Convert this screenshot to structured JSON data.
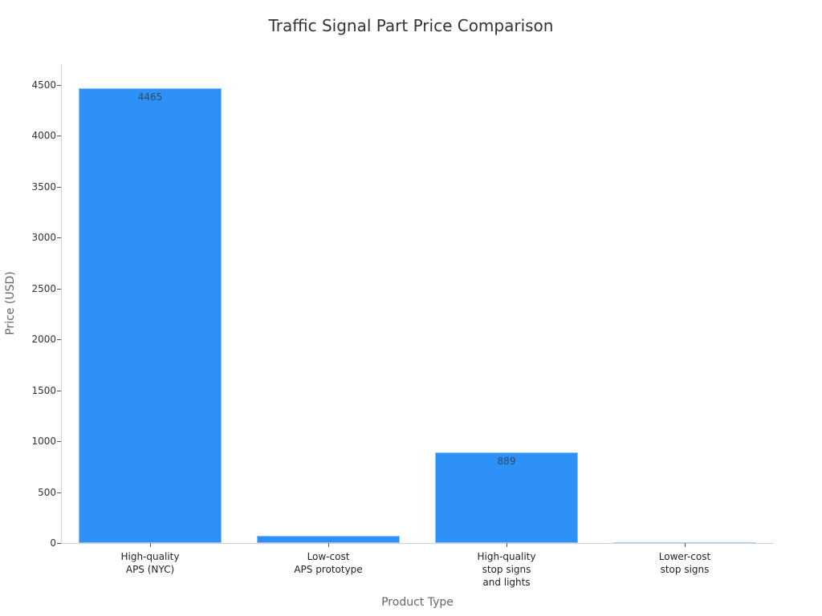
{
  "chart_data": {
    "type": "bar",
    "title": "Traffic Signal Part Price Comparison",
    "xlabel": "Product Type",
    "ylabel": "Price (USD)",
    "categories": [
      "High-quality\nAPS (NYC)",
      "Low-cost\nAPS prototype",
      "High-quality\nstop signs\nand lights",
      "Lower-cost\nstop signs"
    ],
    "values": [
      4465,
      70,
      889,
      5
    ],
    "data_labels": [
      "4465",
      "",
      "889",
      ""
    ],
    "ylim": [
      0,
      4700
    ],
    "yticks": [
      0,
      500,
      1000,
      1500,
      2000,
      2500,
      3000,
      3500,
      4000,
      4500
    ],
    "grid": false,
    "legend": null,
    "bar_color": "#2d91f7"
  }
}
